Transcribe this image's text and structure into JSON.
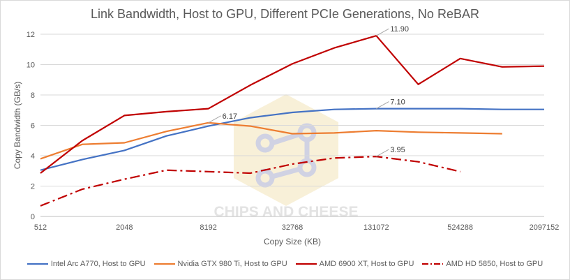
{
  "chart_data": {
    "type": "line",
    "title": "Link Bandwidth, Host to GPU, Different PCIe Generations, No ReBAR",
    "xlabel": "Copy Size (KB)",
    "ylabel": "Copy Bandwidth (GB/s)",
    "x": [
      512,
      1024,
      2048,
      4096,
      8192,
      16384,
      32768,
      65536,
      131072,
      262144,
      524288,
      1048576,
      2097152
    ],
    "x_scale": "log2",
    "x_tick_labels": [
      "512",
      "2048",
      "8192",
      "32768",
      "131072",
      "524288",
      "2097152"
    ],
    "x_tick_values": [
      512,
      2048,
      8192,
      32768,
      131072,
      524288,
      2097152
    ],
    "ylim": [
      0,
      12
    ],
    "y_ticks": [
      0,
      2,
      4,
      6,
      8,
      10,
      12
    ],
    "grid": "horizontal",
    "legend_position": "bottom",
    "series": [
      {
        "name": "Intel Arc A770, Host to GPU",
        "color": "#4472c4",
        "dash": "solid",
        "values": [
          3.05,
          3.75,
          4.35,
          5.3,
          5.95,
          6.5,
          6.85,
          7.05,
          7.1,
          7.1,
          7.1,
          7.05,
          7.05
        ]
      },
      {
        "name": "Nvidia GTX 980 Ti, Host to GPU",
        "color": "#ed7d31",
        "dash": "solid",
        "values": [
          3.8,
          4.75,
          4.85,
          5.6,
          6.17,
          5.95,
          5.45,
          5.5,
          5.65,
          5.55,
          5.5,
          5.45,
          null
        ]
      },
      {
        "name": "AMD 6900 XT, Host to GPU",
        "color": "#c00000",
        "dash": "solid",
        "values": [
          2.85,
          5.0,
          6.65,
          6.9,
          7.1,
          8.65,
          10.05,
          11.1,
          11.9,
          8.7,
          10.4,
          9.85,
          9.9
        ]
      },
      {
        "name": "AMD HD 5850, Host to GPU",
        "color": "#c00000",
        "dash": "dashdot",
        "values": [
          0.7,
          1.8,
          2.45,
          3.05,
          2.95,
          2.85,
          3.45,
          3.85,
          3.95,
          3.6,
          2.95,
          null,
          null
        ]
      }
    ],
    "annotations": [
      {
        "series": 1,
        "index": 4,
        "text": "6.17"
      },
      {
        "series": 0,
        "index": 8,
        "text": "7.10"
      },
      {
        "series": 2,
        "index": 8,
        "text": "11.90"
      },
      {
        "series": 3,
        "index": 8,
        "text": "3.95"
      }
    ]
  },
  "watermark": {
    "text": "CHIPS AND CHEESE"
  }
}
